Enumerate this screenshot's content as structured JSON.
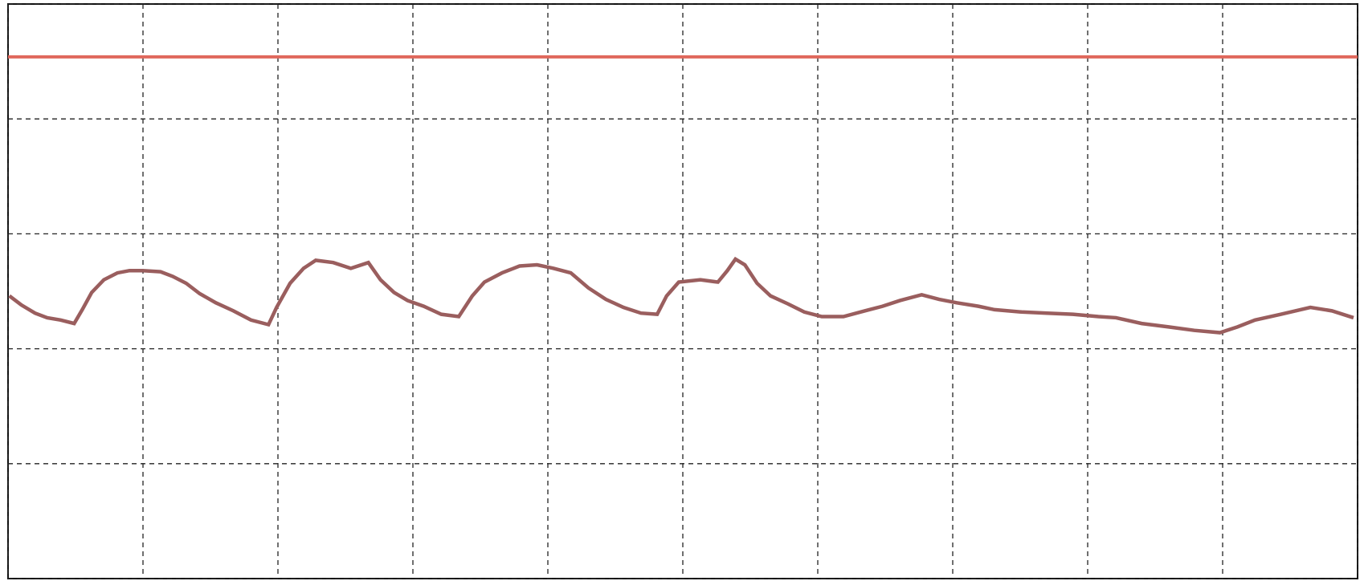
{
  "chart_data": {
    "type": "line",
    "xlim": [
      0,
      10
    ],
    "ylim": [
      0,
      5
    ],
    "xticks": [
      0,
      1,
      2,
      3,
      4,
      5,
      6,
      7,
      8,
      9,
      10
    ],
    "yticks": [
      0,
      1,
      2,
      3,
      4,
      5
    ],
    "grid": true,
    "series": [
      {
        "color": "#e0685c",
        "x": [
          0,
          10
        ],
        "values": [
          4.54,
          4.54
        ]
      },
      {
        "color": "#9a5e5e",
        "x": [
          0.01,
          0.1,
          0.2,
          0.29,
          0.39,
          0.49,
          0.55,
          0.62,
          0.71,
          0.81,
          0.9,
          1.0,
          1.13,
          1.22,
          1.32,
          1.42,
          1.54,
          1.67,
          1.8,
          1.93,
          1.99,
          2.09,
          2.19,
          2.28,
          2.41,
          2.54,
          2.67,
          2.76,
          2.86,
          2.96,
          3.08,
          3.21,
          3.34,
          3.44,
          3.53,
          3.66,
          3.79,
          3.92,
          4.04,
          4.17,
          4.3,
          4.43,
          4.56,
          4.69,
          4.81,
          4.88,
          4.97,
          5.13,
          5.26,
          5.33,
          5.39,
          5.46,
          5.55,
          5.65,
          5.78,
          5.9,
          6.03,
          6.19,
          6.35,
          6.48,
          6.61,
          6.77,
          6.9,
          7.03,
          7.19,
          7.31,
          7.51,
          7.7,
          7.89,
          8.08,
          8.21,
          8.4,
          8.6,
          8.79,
          8.98,
          9.11,
          9.24,
          9.43,
          9.65,
          9.81,
          9.97
        ],
        "values": [
          2.46,
          2.38,
          2.31,
          2.27,
          2.25,
          2.22,
          2.34,
          2.49,
          2.6,
          2.66,
          2.68,
          2.68,
          2.67,
          2.63,
          2.57,
          2.48,
          2.4,
          2.33,
          2.25,
          2.21,
          2.36,
          2.57,
          2.7,
          2.77,
          2.75,
          2.7,
          2.75,
          2.6,
          2.49,
          2.42,
          2.37,
          2.3,
          2.28,
          2.46,
          2.58,
          2.66,
          2.72,
          2.73,
          2.7,
          2.66,
          2.53,
          2.43,
          2.36,
          2.31,
          2.3,
          2.46,
          2.58,
          2.6,
          2.58,
          2.68,
          2.78,
          2.73,
          2.57,
          2.46,
          2.39,
          2.32,
          2.28,
          2.28,
          2.33,
          2.37,
          2.42,
          2.47,
          2.43,
          2.4,
          2.37,
          2.34,
          2.32,
          2.31,
          2.3,
          2.28,
          2.27,
          2.22,
          2.19,
          2.16,
          2.14,
          2.19,
          2.25,
          2.3,
          2.36,
          2.33,
          2.27
        ]
      }
    ]
  }
}
